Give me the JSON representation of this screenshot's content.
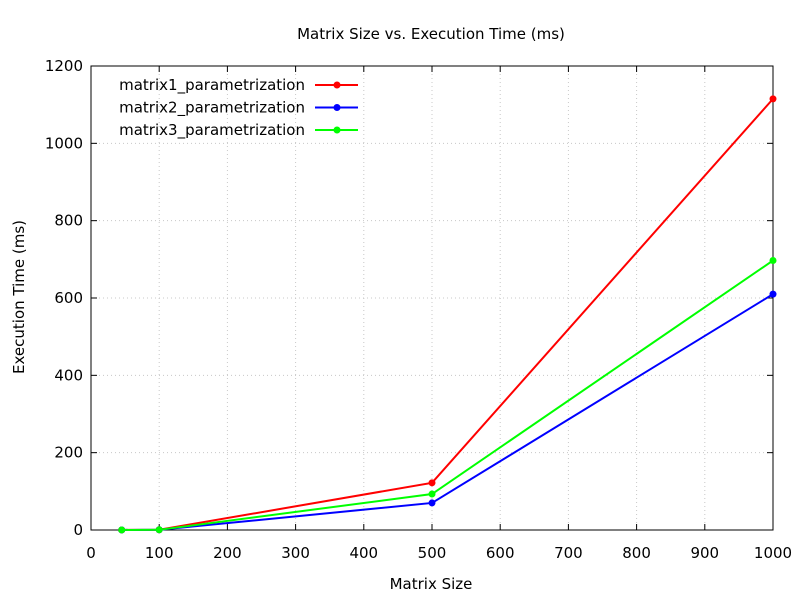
{
  "chart_data": {
    "type": "line",
    "title": "Matrix Size vs. Execution Time (ms)",
    "xlabel": "Matrix Size",
    "ylabel": "Execution Time (ms)",
    "xlim": [
      0,
      1000
    ],
    "ylim": [
      0,
      1200
    ],
    "xticks": [
      0,
      100,
      200,
      300,
      400,
      500,
      600,
      700,
      800,
      900,
      1000
    ],
    "yticks": [
      0,
      200,
      400,
      600,
      800,
      1000,
      1200
    ],
    "grid": true,
    "legend_position": "top-left",
    "x": [
      45,
      100,
      500,
      1000
    ],
    "series": [
      {
        "name": "matrix1_parametrization",
        "color": "#ff0000",
        "values": [
          0.1,
          0.6,
          122,
          1115
        ]
      },
      {
        "name": "matrix2_parametrization",
        "color": "#0000ff",
        "values": [
          0.1,
          0.5,
          70,
          610
        ]
      },
      {
        "name": "matrix3_parametrization",
        "color": "#00ff00",
        "values": [
          0.1,
          0.5,
          93,
          697
        ]
      }
    ]
  }
}
